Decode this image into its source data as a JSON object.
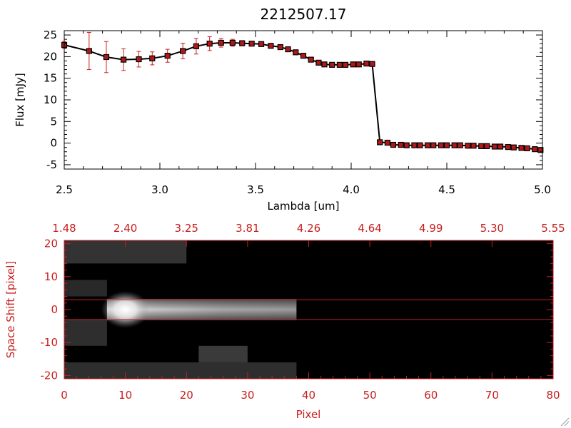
{
  "chart_data": [
    {
      "type": "line",
      "title": "2212507.17",
      "xlabel": "Lambda [um]",
      "ylabel": "Flux [mJy]",
      "xlim": [
        2.5,
        5.0
      ],
      "ylim": [
        -6,
        26
      ],
      "x_ticks": [
        "2.5",
        "3.0",
        "3.5",
        "4.0",
        "4.5",
        "5.0"
      ],
      "y_ticks": [
        "-5",
        "0",
        "5",
        "10",
        "15",
        "20",
        "25"
      ],
      "line_color": "#000000",
      "marker_color": "#b01818",
      "errorbar_color": "#c81e1e",
      "series": [
        {
          "x": [
            2.5,
            2.63,
            2.72,
            2.81,
            2.89,
            2.96,
            3.04,
            3.12,
            3.19,
            3.26,
            3.32,
            3.38,
            3.43,
            3.48,
            3.53,
            3.58,
            3.63,
            3.67,
            3.71,
            3.75,
            3.79,
            3.83,
            3.86,
            3.9,
            3.94,
            3.97,
            4.01,
            4.04,
            4.08,
            4.11,
            4.15,
            4.19,
            4.22,
            4.26,
            4.29,
            4.33,
            4.36,
            4.4,
            4.43,
            4.47,
            4.5,
            4.54,
            4.57,
            4.61,
            4.64,
            4.68,
            4.71,
            4.75,
            4.78,
            4.82,
            4.85,
            4.89,
            4.92,
            4.96,
            4.99
          ],
          "y": [
            22.7,
            21.3,
            19.9,
            19.3,
            19.4,
            19.6,
            20.2,
            21.3,
            22.4,
            23.0,
            23.2,
            23.2,
            23.1,
            23.0,
            22.9,
            22.5,
            22.2,
            21.7,
            21.0,
            20.2,
            19.3,
            18.6,
            18.2,
            18.1,
            18.1,
            18.1,
            18.2,
            18.2,
            18.4,
            18.3,
            0.2,
            0.1,
            -0.4,
            -0.4,
            -0.5,
            -0.5,
            -0.5,
            -0.5,
            -0.5,
            -0.5,
            -0.5,
            -0.5,
            -0.5,
            -0.6,
            -0.6,
            -0.7,
            -0.7,
            -0.8,
            -0.8,
            -0.9,
            -1.0,
            -1.1,
            -1.2,
            -1.4,
            -1.6
          ],
          "yerr": [
            0.8,
            4.3,
            3.6,
            2.5,
            1.8,
            1.5,
            1.5,
            1.8,
            1.8,
            1.6,
            1.0,
            0.8,
            0.6,
            0.5,
            0.5,
            0.5,
            0.4,
            0.4,
            0.4,
            0.4,
            0.4,
            0.4,
            0.3,
            0.3,
            0.3,
            0.3,
            0.3,
            0.3,
            0.3,
            0.3,
            0.3,
            0.3,
            0.3,
            0.3,
            0.3,
            0.3,
            0.3,
            0.3,
            0.3,
            0.3,
            0.3,
            0.3,
            0.3,
            0.3,
            0.3,
            0.3,
            0.3,
            0.3,
            0.3,
            0.3,
            0.3,
            0.3,
            0.3,
            0.3,
            0.3
          ]
        }
      ]
    },
    {
      "type": "heatmap",
      "xlabel": "Pixel",
      "ylabel": "Space Shift [pixel]",
      "xlim": [
        0,
        80
      ],
      "ylim": [
        -21,
        21
      ],
      "x_ticks": [
        "0",
        "10",
        "20",
        "30",
        "40",
        "50",
        "60",
        "70",
        "80"
      ],
      "y_ticks": [
        "-20",
        "-10",
        "0",
        "10",
        "20"
      ],
      "top_axis_ticks": [
        "1.48",
        "2.40",
        "3.25",
        "3.81",
        "4.26",
        "4.64",
        "4.99",
        "5.30",
        "5.55"
      ],
      "extraction_window": [
        -3,
        3
      ],
      "axis_color": "#c81e1e",
      "trace": {
        "x_start": 7,
        "x_end": 38,
        "peak_x": 10,
        "peak_level": 1.0
      },
      "background_patches": [
        {
          "x": [
            0,
            20
          ],
          "y": [
            14,
            21
          ],
          "level": 0.22
        },
        {
          "x": [
            0,
            7
          ],
          "y": [
            4,
            9
          ],
          "level": 0.18
        },
        {
          "x": [
            0,
            7
          ],
          "y": [
            -11,
            -3
          ],
          "level": 0.2
        },
        {
          "x": [
            22,
            30
          ],
          "y": [
            -16,
            -11
          ],
          "level": 0.25
        },
        {
          "x": [
            0,
            38
          ],
          "y": [
            -21,
            -16
          ],
          "level": 0.2
        }
      ]
    }
  ]
}
